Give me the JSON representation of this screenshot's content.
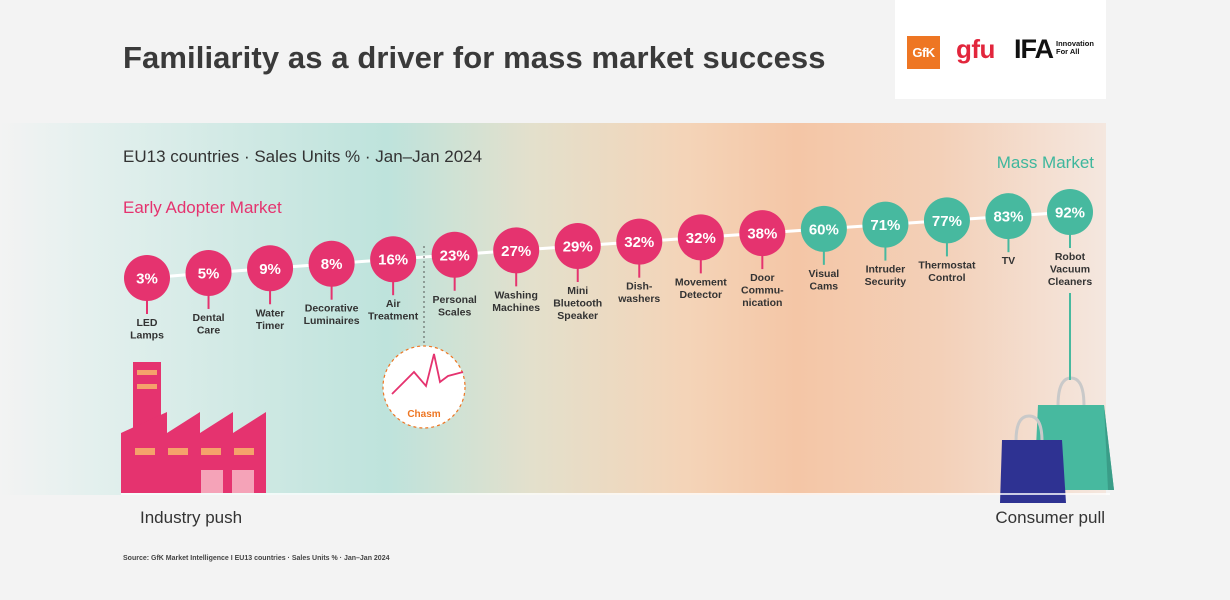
{
  "title": "Familiarity as a driver for mass market success",
  "logos": {
    "gfk": "GfK",
    "gfu": "gfu",
    "ifa": "IFA",
    "ifa_tagline": "Innovation For All"
  },
  "subtitle": "EU13 countries · Sales Units % · Jan–Jan 2024",
  "early_adopter_label": "Early Adopter Market",
  "mass_market_label": "Mass Market",
  "industry_push_label": "Industry push",
  "consumer_pull_label": "Consumer pull",
  "chasm_label": "Chasm",
  "source": "Source: GfK Market Intelligence I EU13 countries · Sales Units % · Jan–Jan 2024",
  "colors": {
    "early": "#e5336f",
    "mass": "#47b99f",
    "chasm": "#ee7623"
  },
  "chart_data": {
    "type": "scatter",
    "unit": "%",
    "categories": [
      [
        "LED",
        "Lamps"
      ],
      [
        "Dental",
        "Care"
      ],
      [
        "Water",
        "Timer"
      ],
      [
        "Decorative",
        "Luminaires"
      ],
      [
        "Air",
        "Treatment"
      ],
      [
        "Personal",
        "Scales"
      ],
      [
        "Washing",
        "Machines"
      ],
      [
        "Mini",
        "Bluetooth",
        "Speaker"
      ],
      [
        "Dish-",
        "washers"
      ],
      [
        "Movement",
        "Detector"
      ],
      [
        "Door",
        "Commu-",
        "nication"
      ],
      [
        "Visual",
        "Cams"
      ],
      [
        "Intruder",
        "Security"
      ],
      [
        "Thermostat",
        "Control"
      ],
      [
        "TV"
      ],
      [
        "Robot",
        "Vacuum",
        "Cleaners"
      ]
    ],
    "values": [
      3,
      5,
      9,
      8,
      16,
      23,
      27,
      29,
      32,
      32,
      38,
      60,
      71,
      77,
      83,
      92
    ],
    "value_labels": [
      "3%",
      "5%",
      "9%",
      "8%",
      "16%",
      "23%",
      "27%",
      "29%",
      "32%",
      "32%",
      "38%",
      "60%",
      "71%",
      "77%",
      "83%",
      "92%"
    ],
    "segments": [
      "early",
      "early",
      "early",
      "early",
      "early",
      "early",
      "early",
      "early",
      "early",
      "early",
      "early",
      "mass",
      "mass",
      "mass",
      "mass",
      "mass"
    ]
  }
}
